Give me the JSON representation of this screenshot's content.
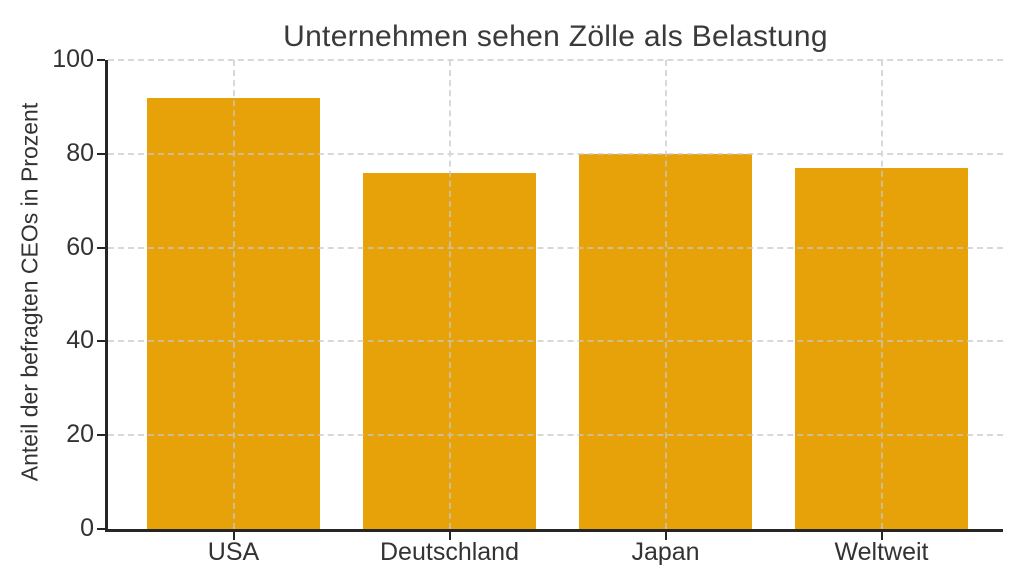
{
  "chart_data": {
    "type": "bar",
    "title": "Unternehmen sehen Zölle als Belastung",
    "ylabel": "Anteil der befragten CEOs in Prozent",
    "xlabel": "",
    "categories": [
      "USA",
      "Deutschland",
      "Japan",
      "Weltweit"
    ],
    "values": [
      92,
      76,
      80,
      77
    ],
    "ylim": [
      0,
      100
    ],
    "yticks": [
      0,
      20,
      40,
      60,
      80,
      100
    ],
    "grid": "dashed horizontal lines at each ytick and dashed vertical lines at each category center, drawn above bars",
    "legend_position": "none",
    "colors": {
      "bar": "#E6A208",
      "grid": "#c8c8c8",
      "axis": "#262626",
      "text": "#333333",
      "background": "#ffffff"
    }
  }
}
